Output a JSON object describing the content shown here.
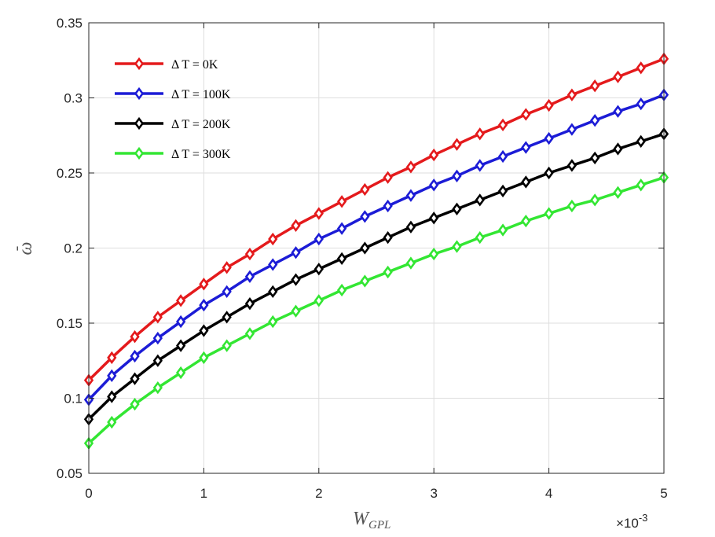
{
  "chart_data": {
    "type": "line",
    "title": "",
    "xlabel_main": "W",
    "xlabel_sub": "GPL",
    "ylabel_main": "ω",
    "ylabel_accent": "-",
    "x_multiplier_prefix": "×10",
    "x_multiplier_exp": "-3",
    "xlim": [
      0,
      5
    ],
    "ylim": [
      0.05,
      0.35
    ],
    "xticks": [
      0,
      1,
      2,
      3,
      4,
      5
    ],
    "xtick_labels": [
      "0",
      "1",
      "2",
      "3",
      "4",
      "5"
    ],
    "yticks": [
      0.05,
      0.1,
      0.15,
      0.2,
      0.25,
      0.3,
      0.35
    ],
    "ytick_labels": [
      "0.05",
      "0.1",
      "0.15",
      "0.2",
      "0.25",
      "0.3",
      "0.35"
    ],
    "grid": true,
    "legend_position": "top-left",
    "x": [
      0,
      0.2,
      0.4,
      0.6,
      0.8,
      1.0,
      1.2,
      1.4,
      1.6,
      1.8,
      2.0,
      2.2,
      2.4,
      2.6,
      2.8,
      3.0,
      3.2,
      3.4,
      3.6,
      3.8,
      4.0,
      4.2,
      4.4,
      4.6,
      4.8,
      5.0
    ],
    "series": [
      {
        "name": "Δ T = 0K",
        "color": "#e41a1c",
        "values": [
          0.112,
          0.127,
          0.141,
          0.154,
          0.165,
          0.176,
          0.187,
          0.196,
          0.206,
          0.215,
          0.223,
          0.231,
          0.239,
          0.247,
          0.254,
          0.262,
          0.269,
          0.276,
          0.282,
          0.289,
          0.295,
          0.302,
          0.308,
          0.314,
          0.32,
          0.326
        ]
      },
      {
        "name": "Δ T = 100K",
        "color": "#1c1cd6",
        "values": [
          0.099,
          0.115,
          0.128,
          0.14,
          0.151,
          0.162,
          0.171,
          0.181,
          0.189,
          0.197,
          0.206,
          0.213,
          0.221,
          0.228,
          0.235,
          0.242,
          0.248,
          0.255,
          0.261,
          0.267,
          0.273,
          0.279,
          0.285,
          0.291,
          0.296,
          0.302
        ]
      },
      {
        "name": "Δ T = 200K",
        "color": "#000000",
        "values": [
          0.086,
          0.101,
          0.113,
          0.125,
          0.135,
          0.145,
          0.154,
          0.163,
          0.171,
          0.179,
          0.186,
          0.193,
          0.2,
          0.207,
          0.214,
          0.22,
          0.226,
          0.232,
          0.238,
          0.244,
          0.25,
          0.255,
          0.26,
          0.266,
          0.271,
          0.276
        ]
      },
      {
        "name": "Δ T = 300K",
        "color": "#33e633",
        "values": [
          0.07,
          0.084,
          0.096,
          0.107,
          0.117,
          0.127,
          0.135,
          0.143,
          0.151,
          0.158,
          0.165,
          0.172,
          0.178,
          0.184,
          0.19,
          0.196,
          0.201,
          0.207,
          0.212,
          0.218,
          0.223,
          0.228,
          0.232,
          0.237,
          0.242,
          0.247
        ]
      }
    ]
  }
}
